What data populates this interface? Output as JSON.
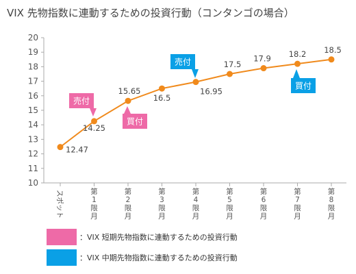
{
  "title": "VIX 先物指数に連動するための投資行動（コンタンゴの場合）",
  "colors": {
    "line": "#f08a1c",
    "axis": "#aaaaaa",
    "grid": "#d8d8d8",
    "short_term": "#ee6aa7",
    "mid_term": "#0aa0e6"
  },
  "legend": [
    {
      "label": "：VIX 短期先物指数に連動するための投資行動",
      "color": "#ee6aa7"
    },
    {
      "label": "：VIX 中期先物指数に連動するための投資行動",
      "color": "#0aa0e6"
    }
  ],
  "chart_data": {
    "type": "line",
    "title": "VIX 先物指数に連動するための投資行動（コンタンゴの場合）",
    "categories": [
      "スポット",
      "第1限月",
      "第2限月",
      "第3限月",
      "第4限月",
      "第5限月",
      "第6限月",
      "第7限月",
      "第8限月"
    ],
    "values": [
      12.47,
      14.25,
      15.65,
      16.5,
      16.95,
      17.5,
      17.9,
      18.2,
      18.5
    ],
    "value_labels": [
      "12.47",
      "14.25",
      "15.65",
      "16.5",
      "16.95",
      "17.5",
      "17.9",
      "18.2",
      "18.5"
    ],
    "ylim": [
      10,
      20
    ],
    "yticks": [
      10,
      11,
      12,
      13,
      14,
      15,
      16,
      17,
      18,
      19,
      20
    ],
    "grid": false,
    "annotations": [
      {
        "text": "売付",
        "category_index": 1,
        "series": "short_term",
        "position": "above"
      },
      {
        "text": "買付",
        "category_index": 2,
        "series": "short_term",
        "position": "below"
      },
      {
        "text": "売付",
        "category_index": 4,
        "series": "mid_term",
        "position": "above"
      },
      {
        "text": "買付",
        "category_index": 7,
        "series": "mid_term",
        "position": "below"
      }
    ]
  }
}
